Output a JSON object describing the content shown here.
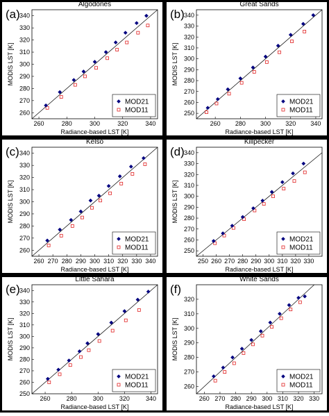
{
  "chart_data": [
    {
      "type": "scatter",
      "title": "Algodones",
      "panel_label": "(a)",
      "xlabel": "Radiance-based LST [K]",
      "ylabel": "MODIS LST [K]",
      "xlim": [
        255,
        345
      ],
      "ylim": [
        255,
        345
      ],
      "xticks": [
        260,
        280,
        300,
        320,
        340
      ],
      "yticks": [
        260,
        270,
        280,
        290,
        300,
        310,
        320,
        330,
        340
      ],
      "legend": "lower right",
      "series": [
        {
          "name": "MOD21",
          "color": "#000080",
          "marker": "diamond",
          "x": [
            265,
            275,
            285,
            292,
            300,
            308,
            315,
            322,
            330,
            337
          ],
          "y": [
            266,
            277,
            287,
            294,
            302,
            310,
            318,
            326,
            334,
            340
          ]
        },
        {
          "name": "MOD11",
          "color": "#e02020",
          "marker": "square",
          "x": [
            266,
            276,
            286,
            293,
            301,
            309,
            316,
            323,
            331,
            338
          ],
          "y": [
            264,
            273,
            283,
            290,
            297,
            305,
            312,
            318,
            326,
            332
          ]
        }
      ]
    },
    {
      "type": "scatter",
      "title": "Great Sands",
      "panel_label": "(b)",
      "xlabel": "Radiance-based LST [K]",
      "ylabel": "MODIS LST [K]",
      "xlim": [
        245,
        345
      ],
      "ylim": [
        245,
        345
      ],
      "xticks": [
        260,
        280,
        300,
        320,
        340
      ],
      "yticks": [
        250,
        260,
        270,
        280,
        290,
        300,
        310,
        320,
        330,
        340
      ],
      "legend": "lower right",
      "series": [
        {
          "name": "MOD21",
          "color": "#000080",
          "marker": "diamond",
          "x": [
            254,
            262,
            270,
            280,
            290,
            300,
            310,
            320,
            330,
            338
          ],
          "y": [
            255,
            263,
            272,
            282,
            292,
            302,
            312,
            322,
            332,
            340
          ]
        },
        {
          "name": "MOD11",
          "color": "#e02020",
          "marker": "square",
          "x": [
            253,
            261,
            271,
            281,
            291,
            301,
            311,
            321,
            331
          ],
          "y": [
            251,
            259,
            268,
            278,
            288,
            297,
            306,
            316,
            325
          ]
        }
      ]
    },
    {
      "type": "scatter",
      "title": "Kelso",
      "panel_label": "(c)",
      "xlabel": "Radiance-based LST [K]",
      "ylabel": "MODIS LST [K]",
      "xlim": [
        255,
        345
      ],
      "ylim": [
        255,
        345
      ],
      "xticks": [
        260,
        270,
        280,
        290,
        300,
        310,
        320,
        330,
        340
      ],
      "yticks": [
        260,
        270,
        280,
        290,
        300,
        310,
        320,
        330,
        340
      ],
      "legend": "lower right",
      "series": [
        {
          "name": "MOD21",
          "color": "#000080",
          "marker": "diamond",
          "x": [
            266,
            275,
            283,
            290,
            297,
            303,
            310,
            318,
            326,
            335
          ],
          "y": [
            268,
            277,
            285,
            292,
            301,
            305,
            313,
            321,
            329,
            336
          ]
        },
        {
          "name": "MOD11",
          "color": "#e02020",
          "marker": "square",
          "x": [
            267,
            276,
            284,
            291,
            298,
            304,
            311,
            319,
            327,
            336
          ],
          "y": [
            264,
            272,
            280,
            287,
            295,
            301,
            307,
            315,
            323,
            331
          ]
        }
      ]
    },
    {
      "type": "scatter",
      "title": "Killpecker",
      "panel_label": "(d)",
      "xlabel": "Radiance-based LST [K]",
      "ylabel": "MODIS LST [K]",
      "xlim": [
        245,
        340
      ],
      "ylim": [
        245,
        345
      ],
      "xticks": [
        250,
        260,
        270,
        280,
        290,
        300,
        310,
        320,
        330
      ],
      "yticks": [
        250,
        260,
        270,
        280,
        290,
        300,
        310,
        320,
        330,
        340
      ],
      "legend": "lower right",
      "series": [
        {
          "name": "MOD21",
          "color": "#000080",
          "marker": "diamond",
          "x": [
            258,
            265,
            272,
            280,
            288,
            295,
            302,
            310,
            318,
            326
          ],
          "y": [
            259,
            266,
            273,
            281,
            289,
            296,
            304,
            313,
            321,
            330
          ]
        },
        {
          "name": "MOD11",
          "color": "#e02020",
          "marker": "square",
          "x": [
            259,
            266,
            273,
            281,
            289,
            296,
            303,
            311,
            319,
            327
          ],
          "y": [
            257,
            264,
            271,
            279,
            287,
            293,
            300,
            307,
            314,
            322
          ]
        }
      ]
    },
    {
      "type": "scatter",
      "title": "Little Sahara",
      "panel_label": "(e)",
      "xlabel": "Radiance-based LST [K]",
      "ylabel": "MODIS LST [K]",
      "xlim": [
        250,
        345
      ],
      "ylim": [
        250,
        345
      ],
      "xticks": [
        260,
        280,
        300,
        320,
        340
      ],
      "yticks": [
        250,
        260,
        270,
        280,
        290,
        300,
        310,
        320,
        330,
        340
      ],
      "legend": "lower right",
      "series": [
        {
          "name": "MOD21",
          "color": "#000080",
          "marker": "diamond",
          "x": [
            262,
            270,
            278,
            286,
            292,
            300,
            310,
            320,
            330,
            338
          ],
          "y": [
            263,
            271,
            279,
            287,
            294,
            302,
            312,
            322,
            332,
            339
          ]
        },
        {
          "name": "MOD11",
          "color": "#e02020",
          "marker": "square",
          "x": [
            263,
            271,
            279,
            287,
            293,
            301,
            311,
            321,
            331
          ],
          "y": [
            260,
            267,
            275,
            282,
            288,
            296,
            305,
            314,
            323
          ]
        }
      ]
    },
    {
      "type": "scatter",
      "title": "White Sands",
      "panel_label": "(f)",
      "xlabel": "Radiance-based LST [K]",
      "ylabel": "MODIS LST [K]",
      "xlim": [
        255,
        335
      ],
      "ylim": [
        255,
        330
      ],
      "xticks": [
        260,
        270,
        280,
        290,
        300,
        310,
        320,
        330
      ],
      "yticks": [
        260,
        270,
        280,
        290,
        300,
        310,
        320
      ],
      "legend": "lower right",
      "series": [
        {
          "name": "MOD21",
          "color": "#000080",
          "marker": "diamond",
          "x": [
            266,
            272,
            278,
            284,
            290,
            296,
            302,
            308,
            314,
            320,
            324
          ],
          "y": [
            267,
            273,
            280,
            286,
            292,
            298,
            304,
            310,
            316,
            321,
            322
          ]
        },
        {
          "name": "MOD11",
          "color": "#e02020",
          "marker": "square",
          "x": [
            267,
            273,
            279,
            285,
            291,
            297,
            303,
            309,
            315,
            321
          ],
          "y": [
            264,
            270,
            276,
            283,
            289,
            295,
            301,
            307,
            313,
            318
          ]
        }
      ]
    }
  ]
}
